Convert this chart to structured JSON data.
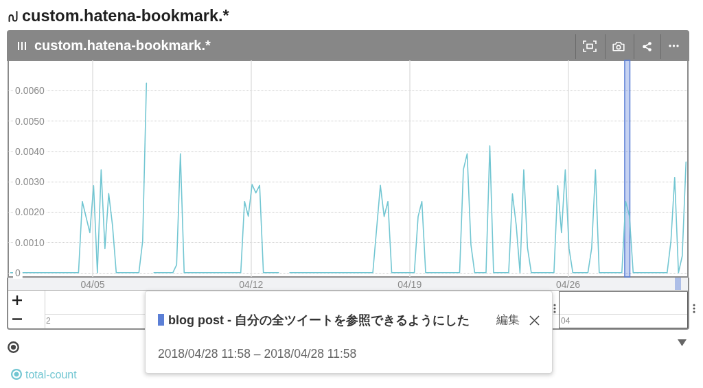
{
  "chart_data": {
    "type": "line",
    "title": "custom.hatena-bookmark.*",
    "x": [
      "2018-04-01T09:00",
      "2018-04-04T09:00",
      "2018-04-04T13:00",
      "2018-04-04T21:00",
      "2018-04-05T01:00",
      "2018-04-05T05:00",
      "2018-04-05T09:00",
      "2018-04-05T13:00",
      "2018-04-05T17:00",
      "2018-04-05T21:00",
      "2018-04-06T01:00",
      "2018-04-07T01:00",
      "2018-04-07T05:00",
      "2018-04-07T09:00",
      "2018-04-07T13:00",
      "2018-04-07T17:00",
      "2018-04-08T13:00",
      "2018-04-08T17:00",
      "2018-04-08T21:00",
      "2018-04-09T01:00",
      "2018-04-11T13:00",
      "2018-04-11T17:00",
      "2018-04-11T21:00",
      "2018-04-12T01:00",
      "2018-04-12T05:00",
      "2018-04-12T09:00",
      "2018-04-12T13:00",
      "2018-04-13T05:00",
      "2018-04-13T09:00",
      "2018-04-13T17:00",
      "2018-04-17T09:00",
      "2018-04-17T17:00",
      "2018-04-17T21:00",
      "2018-04-18T01:00",
      "2018-04-18T05:00",
      "2018-04-19T05:00",
      "2018-04-19T09:00",
      "2018-04-19T13:00",
      "2018-04-19T17:00",
      "2018-04-21T05:00",
      "2018-04-21T09:00",
      "2018-04-21T13:00",
      "2018-04-21T17:00",
      "2018-04-21T21:00",
      "2018-04-22T09:00",
      "2018-04-22T13:00",
      "2018-04-22T17:00",
      "2018-04-23T09:00",
      "2018-04-23T13:00",
      "2018-04-23T17:00",
      "2018-04-23T21:00",
      "2018-04-24T01:00",
      "2018-04-24T05:00",
      "2018-04-24T09:00",
      "2018-04-25T09:00",
      "2018-04-25T13:00",
      "2018-04-25T17:00",
      "2018-04-25T21:00",
      "2018-04-26T01:00",
      "2018-04-26T05:00",
      "2018-04-26T21:00",
      "2018-04-27T01:00",
      "2018-04-27T05:00",
      "2018-04-27T09:00",
      "2018-04-28T09:00",
      "2018-04-28T13:00",
      "2018-04-28T17:00",
      "2018-04-28T21:00",
      "2018-04-30T09:00",
      "2018-04-30T13:00",
      "2018-04-30T17:00",
      "2018-04-30T21:00",
      "2018-05-01T01:00",
      "2018-05-01T05:00"
    ],
    "series": [
      {
        "name": "total-count",
        "color": "#72c6d2",
        "values": [
          0,
          0,
          0.00235,
          0.00132,
          0.00287,
          0,
          0.00339,
          0.0008,
          0.00261,
          0.00157,
          0,
          0,
          0.00104,
          0.00625,
          null,
          0,
          0,
          0.00026,
          0.00392,
          0,
          0,
          0.00235,
          0.00186,
          0.00291,
          0.00263,
          0.00288,
          0,
          0,
          null,
          0,
          0,
          0.00288,
          0.00185,
          0.00235,
          0,
          0,
          0.00185,
          0.00235,
          0,
          0,
          0.0034,
          0.00392,
          0.00092,
          0,
          0,
          0.00418,
          0,
          0,
          0.0026,
          0.00157,
          0,
          0.00339,
          0.00081,
          0,
          0,
          0.00287,
          0.00132,
          0.00339,
          0.0008,
          0,
          0,
          0.00081,
          0.00339,
          0,
          0,
          0.00235,
          0.00187,
          0,
          0,
          0.00104,
          0.00314,
          0,
          0.00055,
          0.00365
        ]
      }
    ],
    "xlim": [
      "2018-04-01T06:30",
      "2018-05-01T07:00"
    ],
    "xticks": [
      {
        "value": "2018-04-05",
        "label": "04/05"
      },
      {
        "value": "2018-04-12",
        "label": "04/12"
      },
      {
        "value": "2018-04-19",
        "label": "04/19"
      },
      {
        "value": "2018-04-26",
        "label": "04/26"
      }
    ],
    "ylim": [
      -0.00014,
      0.007
    ],
    "yticks": [
      0,
      {
        "value": 0.001,
        "label": "0.0010"
      },
      {
        "value": 0.002,
        "label": "0.0020"
      },
      {
        "value": 0.003,
        "label": "0.0030"
      },
      {
        "value": 0.004,
        "label": "0.0040"
      },
      {
        "value": 0.005,
        "label": "0.0050"
      },
      {
        "value": 0.006,
        "label": "0.0060"
      }
    ],
    "grid": true,
    "legend": "bottom left",
    "bands": [
      {
        "axis": "x",
        "from": "2018-04-28T12:00",
        "to": "2018-04-28T17:30",
        "label": "blog post - 自分の全ツイートを参照できるようにした",
        "color": "#5b7fd6"
      }
    ],
    "annotations": [
      "2018/04/28 11:58 – 2018/04/28 11:58",
      "編集",
      "2",
      "04"
    ]
  }
}
